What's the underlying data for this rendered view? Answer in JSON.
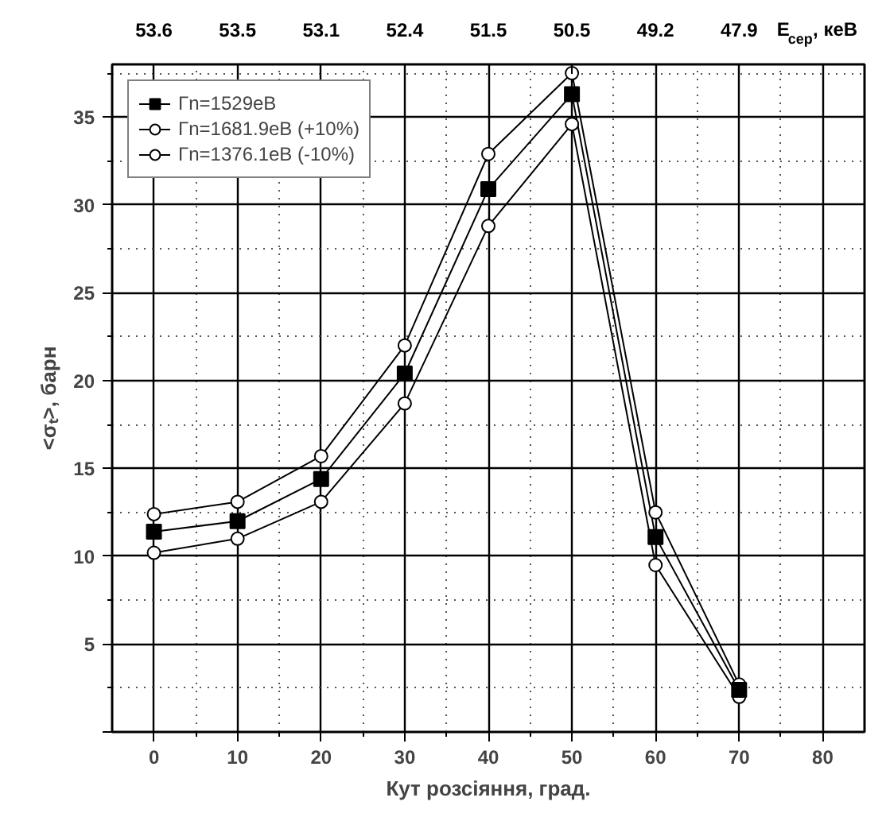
{
  "chart_data": {
    "type": "line",
    "xlabel": "Кут розсіяння, град.",
    "ylabel": "<σₜ>, барн",
    "x2label": "E$_{сер}$, кеВ",
    "x": [
      0,
      10,
      20,
      30,
      40,
      50,
      60,
      70
    ],
    "series": [
      {
        "name": "Γn=1529eB",
        "color": "#000000",
        "marker": "square",
        "values": [
          11.4,
          12.0,
          14.4,
          20.4,
          30.9,
          36.3,
          11.1,
          2.4
        ]
      },
      {
        "name": "Γn=1681.9eB (+10%)",
        "color": "#000000",
        "marker": "circle",
        "values": [
          12.4,
          13.1,
          15.7,
          22.0,
          32.9,
          37.5,
          12.5,
          2.7
        ]
      },
      {
        "name": "Γn=1376.1eB (-10%)",
        "color": "#000000",
        "marker": "circle",
        "values": [
          10.2,
          11.0,
          13.1,
          18.7,
          28.8,
          34.6,
          9.5,
          2.0
        ]
      }
    ],
    "xlim": [
      -5,
      85
    ],
    "ylim": [
      0,
      38
    ],
    "xticks": [
      0,
      10,
      20,
      30,
      40,
      50,
      60,
      70,
      80
    ],
    "yticks": [
      {
        "value": 0,
        "label": null
      },
      5,
      10,
      15,
      20,
      25,
      30,
      35
    ],
    "annotations": [
      "53.6",
      "53.5",
      "53.1",
      "52.4",
      "51.5",
      "50.5",
      "49.2",
      "47.9"
    ],
    "grid": true,
    "legend": "top left",
    "line_style": "solid"
  }
}
